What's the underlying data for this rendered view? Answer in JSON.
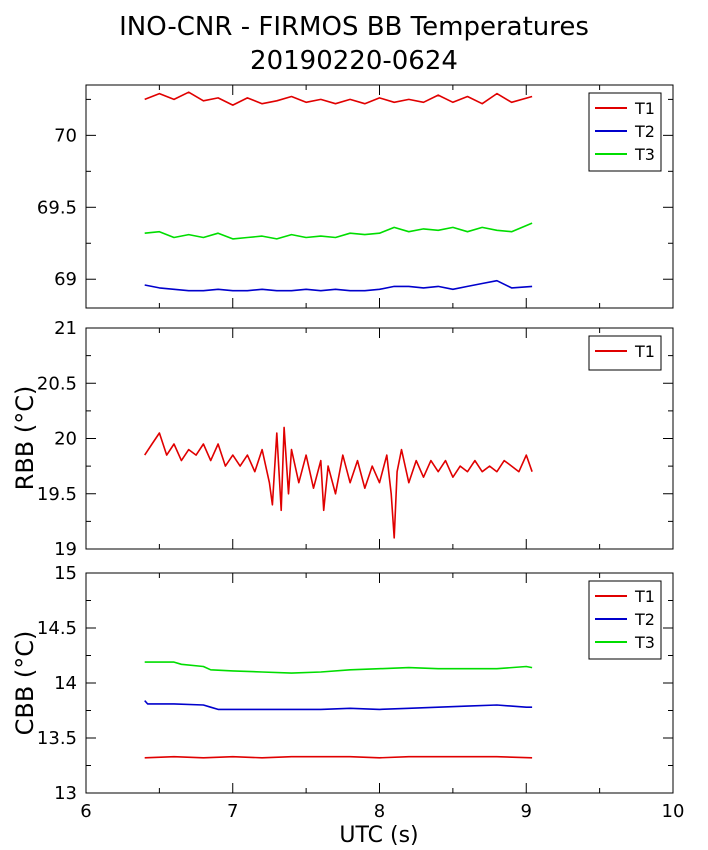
{
  "figure": {
    "title": "INO-CNR - FIRMOS BB Temperatures",
    "subtitle": "20190220-0624",
    "xlabel": "UTC (s)"
  },
  "colors": {
    "T1": "#e00000",
    "T2": "#0000cc",
    "T3": "#00dd00"
  },
  "chart_data": [
    {
      "type": "line",
      "title": "",
      "ylabel": "",
      "xlim": [
        6,
        10
      ],
      "ylim": [
        68.8,
        70.35
      ],
      "yticks": [
        "69",
        "69.5",
        "70"
      ],
      "legend": "top-right",
      "series": [
        {
          "name": "T1",
          "x": [
            6.4,
            6.5,
            6.6,
            6.7,
            6.8,
            6.9,
            7.0,
            7.1,
            7.2,
            7.3,
            7.4,
            7.5,
            7.6,
            7.7,
            7.8,
            7.9,
            8.0,
            8.1,
            8.2,
            8.3,
            8.4,
            8.5,
            8.6,
            8.7,
            8.8,
            8.9,
            9.04
          ],
          "y": [
            70.25,
            70.29,
            70.25,
            70.3,
            70.24,
            70.26,
            70.21,
            70.26,
            70.22,
            70.24,
            70.27,
            70.23,
            70.25,
            70.22,
            70.25,
            70.22,
            70.26,
            70.23,
            70.25,
            70.23,
            70.28,
            70.23,
            70.27,
            70.22,
            70.29,
            70.23,
            70.27
          ]
        },
        {
          "name": "T2",
          "x": [
            6.4,
            6.5,
            6.6,
            6.7,
            6.8,
            6.9,
            7.0,
            7.1,
            7.2,
            7.3,
            7.4,
            7.5,
            7.6,
            7.7,
            7.8,
            7.9,
            8.0,
            8.1,
            8.2,
            8.3,
            8.4,
            8.5,
            8.6,
            8.7,
            8.8,
            8.9,
            9.04
          ],
          "y": [
            68.96,
            68.94,
            68.93,
            68.92,
            68.92,
            68.93,
            68.92,
            68.92,
            68.93,
            68.92,
            68.92,
            68.93,
            68.92,
            68.93,
            68.92,
            68.92,
            68.93,
            68.95,
            68.95,
            68.94,
            68.95,
            68.93,
            68.95,
            68.97,
            68.99,
            68.94,
            68.95
          ]
        },
        {
          "name": "T3",
          "x": [
            6.4,
            6.5,
            6.6,
            6.7,
            6.8,
            6.9,
            7.0,
            7.1,
            7.2,
            7.3,
            7.4,
            7.5,
            7.6,
            7.7,
            7.8,
            7.9,
            8.0,
            8.1,
            8.2,
            8.3,
            8.4,
            8.5,
            8.6,
            8.7,
            8.8,
            8.9,
            9.04
          ],
          "y": [
            69.32,
            69.33,
            69.29,
            69.31,
            69.29,
            69.32,
            69.28,
            69.29,
            69.3,
            69.28,
            69.31,
            69.29,
            69.3,
            69.29,
            69.32,
            69.31,
            69.32,
            69.36,
            69.33,
            69.35,
            69.34,
            69.36,
            69.33,
            69.36,
            69.34,
            69.33,
            69.39
          ]
        }
      ]
    },
    {
      "type": "line",
      "title": "",
      "ylabel": "RBB (°C)",
      "xlim": [
        6,
        10
      ],
      "ylim": [
        19,
        21
      ],
      "yticks": [
        "19",
        "19.5",
        "20",
        "20.5",
        "21"
      ],
      "legend": "top-right",
      "series": [
        {
          "name": "T1",
          "x": [
            6.4,
            6.45,
            6.5,
            6.55,
            6.6,
            6.65,
            6.7,
            6.75,
            6.8,
            6.85,
            6.9,
            6.95,
            7.0,
            7.05,
            7.1,
            7.15,
            7.2,
            7.25,
            7.27,
            7.3,
            7.33,
            7.35,
            7.38,
            7.4,
            7.45,
            7.5,
            7.55,
            7.6,
            7.62,
            7.65,
            7.7,
            7.75,
            7.8,
            7.85,
            7.9,
            7.95,
            8.0,
            8.05,
            8.08,
            8.1,
            8.12,
            8.15,
            8.2,
            8.25,
            8.3,
            8.35,
            8.4,
            8.45,
            8.5,
            8.55,
            8.6,
            8.65,
            8.7,
            8.75,
            8.8,
            8.85,
            8.9,
            8.95,
            9.0,
            9.04
          ],
          "y": [
            19.85,
            19.95,
            20.05,
            19.85,
            19.95,
            19.8,
            19.9,
            19.85,
            19.95,
            19.8,
            19.95,
            19.75,
            19.85,
            19.75,
            19.85,
            19.7,
            19.9,
            19.6,
            19.4,
            20.05,
            19.35,
            20.1,
            19.5,
            19.9,
            19.6,
            19.85,
            19.55,
            19.8,
            19.35,
            19.75,
            19.5,
            19.85,
            19.6,
            19.8,
            19.55,
            19.75,
            19.6,
            19.85,
            19.5,
            19.1,
            19.7,
            19.9,
            19.6,
            19.8,
            19.65,
            19.8,
            19.7,
            19.8,
            19.65,
            19.75,
            19.7,
            19.8,
            19.7,
            19.75,
            19.7,
            19.8,
            19.75,
            19.7,
            19.85,
            19.7
          ]
        }
      ]
    },
    {
      "type": "line",
      "title": "",
      "ylabel": "CBB (°C)",
      "xlim": [
        6,
        10
      ],
      "ylim": [
        13,
        15
      ],
      "yticks": [
        "13",
        "13.5",
        "14",
        "14.5",
        "15"
      ],
      "xticks": [
        "6",
        "7",
        "8",
        "9",
        "10"
      ],
      "legend": "top-right",
      "series": [
        {
          "name": "T1",
          "x": [
            6.4,
            6.6,
            6.8,
            7.0,
            7.2,
            7.4,
            7.6,
            7.8,
            8.0,
            8.2,
            8.4,
            8.6,
            8.8,
            9.04
          ],
          "y": [
            13.32,
            13.33,
            13.32,
            13.33,
            13.32,
            13.33,
            13.33,
            13.33,
            13.32,
            13.33,
            13.33,
            13.33,
            13.33,
            13.32
          ]
        },
        {
          "name": "T2",
          "x": [
            6.4,
            6.42,
            6.6,
            6.8,
            6.85,
            6.9,
            7.0,
            7.2,
            7.4,
            7.6,
            7.8,
            8.0,
            8.2,
            8.4,
            8.6,
            8.8,
            9.0,
            9.04
          ],
          "y": [
            13.84,
            13.81,
            13.81,
            13.8,
            13.78,
            13.76,
            13.76,
            13.76,
            13.76,
            13.76,
            13.77,
            13.76,
            13.77,
            13.78,
            13.79,
            13.8,
            13.78,
            13.78
          ]
        },
        {
          "name": "T3",
          "x": [
            6.4,
            6.6,
            6.65,
            6.8,
            6.85,
            7.0,
            7.2,
            7.4,
            7.6,
            7.8,
            8.0,
            8.2,
            8.4,
            8.6,
            8.8,
            9.0,
            9.04
          ],
          "y": [
            14.19,
            14.19,
            14.17,
            14.15,
            14.12,
            14.11,
            14.1,
            14.09,
            14.1,
            14.12,
            14.13,
            14.14,
            14.13,
            14.13,
            14.13,
            14.15,
            14.14
          ]
        }
      ]
    }
  ]
}
